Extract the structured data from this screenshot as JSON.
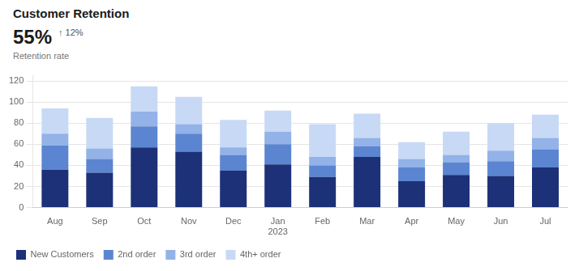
{
  "chart_data": {
    "type": "bar",
    "title": "Customer Retention",
    "subtitle": "Retention rate",
    "annotations": [
      "55%",
      "↑ 12%"
    ],
    "categories": [
      "Aug",
      "Sep",
      "Oct",
      "Nov",
      "Dec",
      "Jan\n2023",
      "Feb",
      "Mar",
      "Apr",
      "May",
      "Jun",
      "Jul"
    ],
    "series": [
      {
        "name": "New Customers",
        "color": "#1c3177",
        "values": [
          36,
          33,
          57,
          53,
          35,
          41,
          29,
          48,
          25,
          31,
          30,
          38
        ]
      },
      {
        "name": "2nd order",
        "color": "#5b85d0",
        "values": [
          23,
          13,
          20,
          17,
          15,
          19,
          11,
          10,
          13,
          12,
          14,
          17
        ]
      },
      {
        "name": "3rd order",
        "color": "#92b2e8",
        "values": [
          11,
          10,
          14,
          9,
          7,
          12,
          8,
          8,
          8,
          7,
          10,
          11
        ]
      },
      {
        "name": "4th+ order",
        "color": "#c8d9f5",
        "values": [
          24,
          29,
          24,
          26,
          26,
          20,
          31,
          23,
          16,
          22,
          26,
          22
        ]
      }
    ],
    "stacked": true,
    "ylim": [
      0,
      125
    ],
    "yticks": [
      0,
      20,
      40,
      60,
      80,
      100,
      120
    ],
    "grid": true,
    "legend": "bottom"
  }
}
